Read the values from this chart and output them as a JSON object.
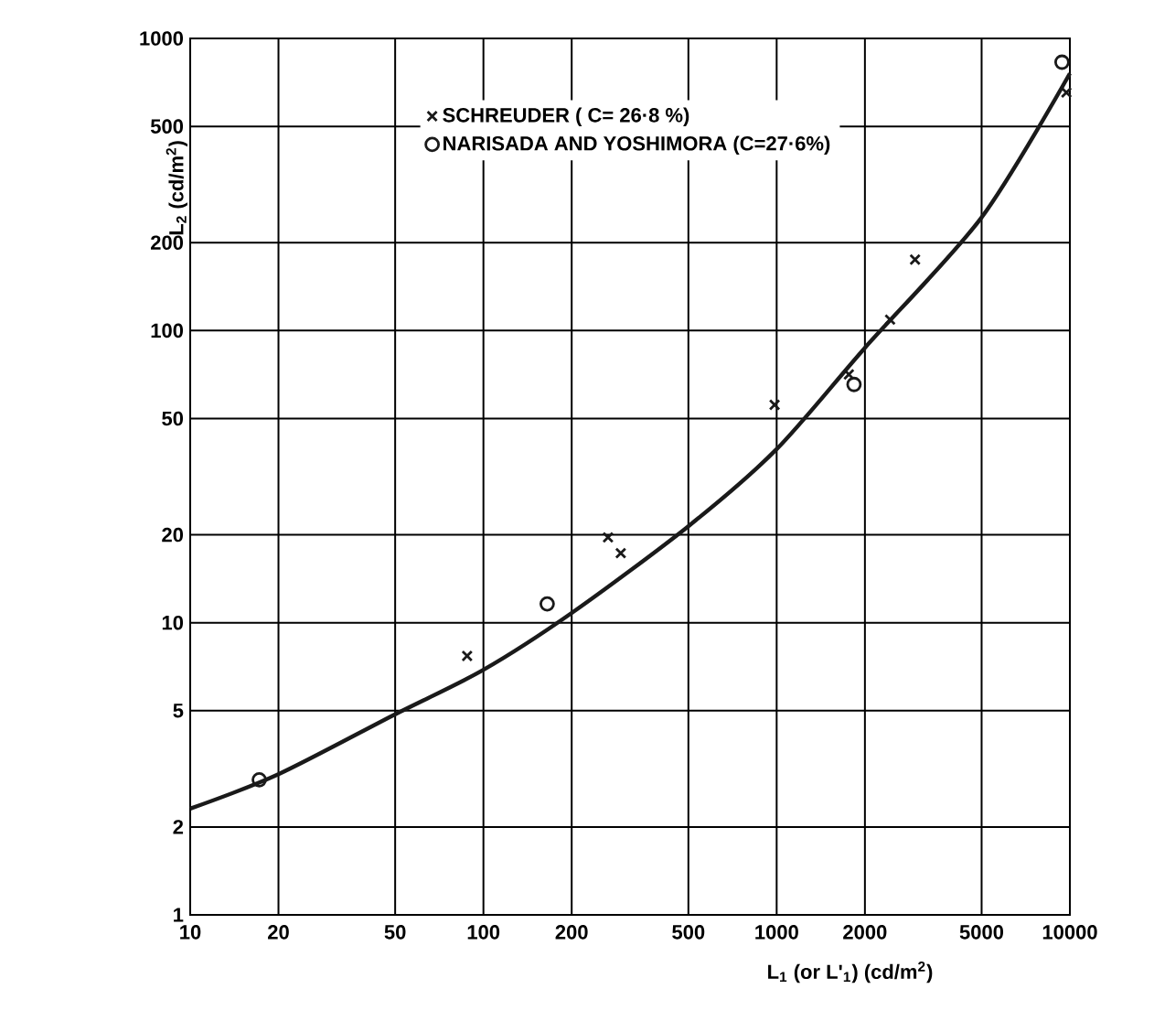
{
  "chart_data": {
    "type": "scatter",
    "xlabel": "L$_{1}$ (or L'$_{1}$) (cd/m$^{2}$)",
    "ylabel": "L$_{2}$ (cd/m$^{2}$)",
    "log": "xy",
    "grid": true,
    "legend": "top",
    "xlim": [
      10,
      10000
    ],
    "ylim": [
      1,
      1000
    ],
    "xticks": [
      10,
      20,
      50,
      100,
      200,
      500,
      1000,
      2000,
      5000,
      10000
    ],
    "yticks": [
      1,
      2,
      5,
      10,
      20,
      50,
      100,
      200,
      500,
      1000
    ],
    "series": [
      {
        "name": "SCHREUDER ( C= 26·8 %)",
        "marker": "cross",
        "color": "#1a1a1a",
        "x": [
          88,
          266,
          294,
          984,
          1763,
          2437,
          2965,
          9730
        ],
        "values": [
          7.7,
          19.6,
          17.3,
          55.7,
          70.8,
          109,
          175,
          653
        ]
      },
      {
        "name": "NARISADA AND YOSHIMORA (C=27·6%)",
        "marker": "circle",
        "color": "#1a1a1a",
        "x": [
          17.2,
          165,
          1836,
          9400
        ],
        "values": [
          2.9,
          11.6,
          65.4,
          829
        ]
      },
      {
        "type": "line",
        "marker": "none",
        "color": "#1a1a1a",
        "x": [
          10,
          20,
          50,
          100,
          200,
          500,
          1000,
          2000,
          5000,
          10000
        ],
        "values": [
          2.31,
          3.03,
          4.86,
          6.9,
          10.8,
          21.4,
          39.3,
          87.3,
          244,
          759
        ]
      }
    ]
  }
}
